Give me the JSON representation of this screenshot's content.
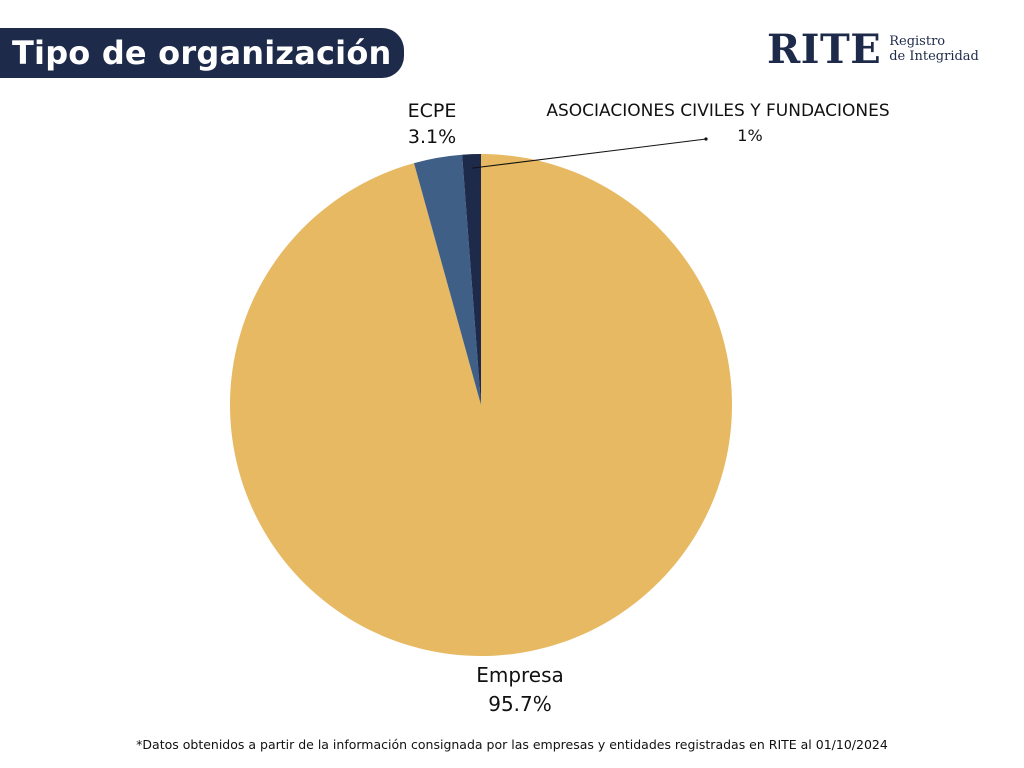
{
  "header": {
    "title": "Tipo de organización"
  },
  "logo": {
    "word": "RITE",
    "line1": "Registro",
    "line2": "de Integridad",
    "color": "#1e2a4a"
  },
  "chart_data": {
    "type": "pie",
    "title": "Tipo de organización",
    "start_angle_deg": 0,
    "direction": "clockwise",
    "slices": [
      {
        "label": "Empresa",
        "pct_label": "95.7%",
        "value": 95.7,
        "color": "#e6b962"
      },
      {
        "label": "ECPE",
        "pct_label": "3.1%",
        "value": 3.1,
        "color": "#3f5f87"
      },
      {
        "label": "ASOCIACIONES CIVILES Y FUNDACIONES",
        "pct_label": "1%",
        "value": 1.2,
        "color": "#1e2a4a"
      }
    ]
  },
  "footnote": "*Datos obtenidos a partir de la información consignada por las empresas y entidades registradas en RITE al 01/10/2024"
}
